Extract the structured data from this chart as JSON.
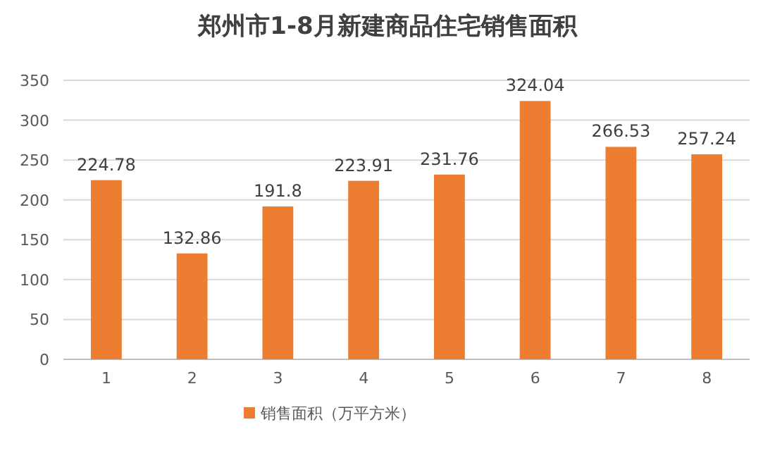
{
  "chart_data": {
    "type": "bar",
    "title": "郑州市1-8月新建商品住宅销售面积",
    "categories": [
      "1",
      "2",
      "3",
      "4",
      "5",
      "6",
      "7",
      "8"
    ],
    "series": [
      {
        "name": "销售面积（万平方米）",
        "color": "#ed7d31",
        "values": [
          224.78,
          132.86,
          191.8,
          223.91,
          231.76,
          324.04,
          266.53,
          257.24
        ]
      }
    ],
    "ylim": [
      0,
      350
    ],
    "yticks": [
      0,
      50,
      100,
      150,
      200,
      250,
      300,
      350
    ],
    "grid": "y",
    "legend": "bottom",
    "data_labels": true
  }
}
